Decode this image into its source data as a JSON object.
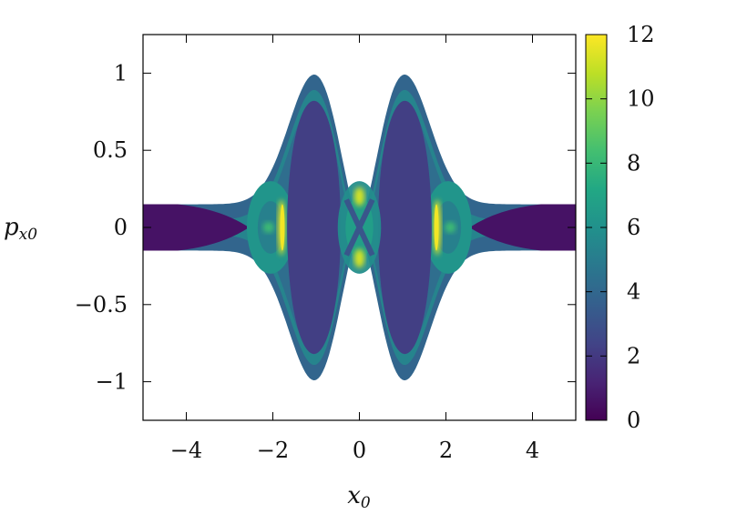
{
  "chart_data": {
    "type": "heatmap",
    "title": "",
    "xlabel": "x",
    "xlabel_sub": "0",
    "ylabel": "p",
    "ylabel_sub": "x0",
    "xlim": [
      -5,
      5
    ],
    "ylim": [
      -1.25,
      1.25
    ],
    "x_ticks": [
      -4,
      -2,
      0,
      2,
      4
    ],
    "x_tick_labels": [
      "−4",
      "−2",
      "0",
      "2",
      "4"
    ],
    "y_ticks": [
      -1,
      -0.5,
      0,
      0.5,
      1
    ],
    "y_tick_labels": [
      "−1",
      "−0.5",
      "0",
      "0.5",
      "1"
    ],
    "colorbar": {
      "range": [
        0,
        12
      ],
      "ticks": [
        0,
        2,
        4,
        6,
        8,
        10,
        12
      ],
      "tick_labels": [
        "0",
        "2",
        "4",
        "6",
        "8",
        "10",
        "12"
      ],
      "colormap": "viridis"
    },
    "grid": false,
    "legend": "none",
    "regions": [
      {
        "name": "outer boundary",
        "x_range": [
          -5,
          5
        ],
        "p_extent": [
          0.15,
          1.02
        ],
        "value": 4
      },
      {
        "name": "outer tails",
        "x_range": [
          -5,
          -2.6
        ],
        "p_extent": [
          0,
          0.15
        ],
        "value": 0.5
      },
      {
        "name": "central lobes",
        "centers": [
          -1,
          1
        ],
        "p_extent": [
          0,
          0.95
        ],
        "value": 2
      },
      {
        "name": "bright bands",
        "centers": [
          -1.75,
          1.75,
          0
        ],
        "value": 11
      }
    ]
  }
}
